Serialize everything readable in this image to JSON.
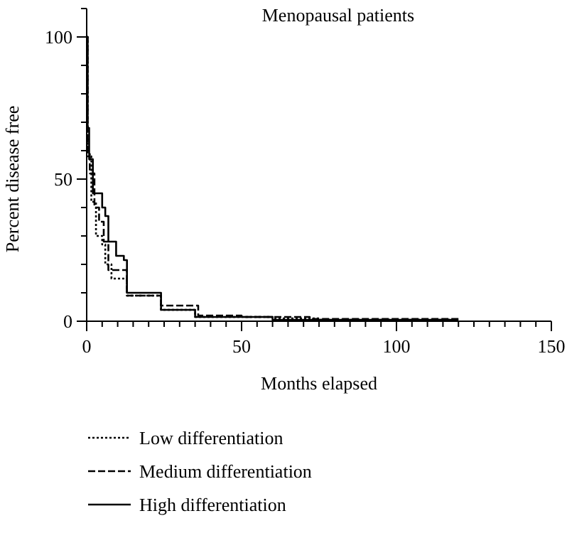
{
  "chart_data": {
    "type": "step",
    "title": "Menopausal patients",
    "xlabel": "Months elapsed",
    "ylabel": "Percent disease free",
    "xlim": [
      0,
      150
    ],
    "ylim": [
      0,
      110
    ],
    "xticks": [
      0,
      {
        "value": 5,
        "label": null
      },
      {
        "value": 10,
        "label": null
      },
      {
        "value": 15,
        "label": null
      },
      {
        "value": 20,
        "label": null
      },
      {
        "value": 25,
        "label": null
      },
      {
        "value": 30,
        "label": null
      },
      {
        "value": 35,
        "label": null
      },
      {
        "value": 40,
        "label": null
      },
      {
        "value": 45,
        "label": null
      },
      50,
      {
        "value": 55,
        "label": null
      },
      {
        "value": 60,
        "label": null
      },
      {
        "value": 65,
        "label": null
      },
      {
        "value": 70,
        "label": null
      },
      {
        "value": 75,
        "label": null
      },
      {
        "value": 80,
        "label": null
      },
      {
        "value": 85,
        "label": null
      },
      {
        "value": 90,
        "label": null
      },
      {
        "value": 95,
        "label": null
      },
      100,
      {
        "value": 105,
        "label": null
      },
      {
        "value": 110,
        "label": null
      },
      {
        "value": 115,
        "label": null
      },
      {
        "value": 120,
        "label": null
      },
      {
        "value": 125,
        "label": null
      },
      {
        "value": 130,
        "label": null
      },
      {
        "value": 135,
        "label": null
      },
      {
        "value": 140,
        "label": null
      },
      {
        "value": 145,
        "label": null
      },
      150
    ],
    "yticks": [
      0,
      {
        "value": 10,
        "label": null
      },
      {
        "value": 20,
        "label": null
      },
      {
        "value": 30,
        "label": null
      },
      {
        "value": 40,
        "label": null
      },
      50,
      {
        "value": 60,
        "label": null
      },
      {
        "value": 70,
        "label": null
      },
      {
        "value": 80,
        "label": null
      },
      {
        "value": 90,
        "label": null
      },
      100,
      {
        "value": 110,
        "label": null
      }
    ],
    "legend": "bottom left",
    "grid": false,
    "series": [
      {
        "name": "Low differentiation",
        "color": "#000000",
        "line_style": "dotted",
        "x": [
          0,
          0.3,
          1.5,
          3,
          5,
          6,
          8,
          13,
          24,
          35,
          60,
          75,
          120
        ],
        "values": [
          100,
          58,
          42,
          30,
          27,
          20,
          15,
          9,
          4,
          1.5,
          1,
          0.5,
          0.5
        ]
      },
      {
        "name": "Medium differentiation",
        "color": "#000000",
        "line_style": "dashed",
        "x": [
          0,
          0.3,
          1,
          2.5,
          4,
          5.5,
          7,
          13,
          24,
          36,
          50,
          72,
          120
        ],
        "values": [
          100,
          60,
          52,
          40,
          35,
          28,
          18,
          9,
          5.5,
          2,
          1.5,
          0.8,
          0.8
        ]
      },
      {
        "name": "High differentiation",
        "color": "#000000",
        "line_style": "solid",
        "x": [
          0,
          0.3,
          0.8,
          2,
          5,
          6,
          7,
          9.5,
          12,
          13,
          24,
          35,
          60,
          120
        ],
        "values": [
          100,
          68,
          57,
          45,
          40,
          37,
          28,
          23,
          21.5,
          10,
          4,
          1.5,
          0.5,
          0.5
        ]
      }
    ]
  }
}
